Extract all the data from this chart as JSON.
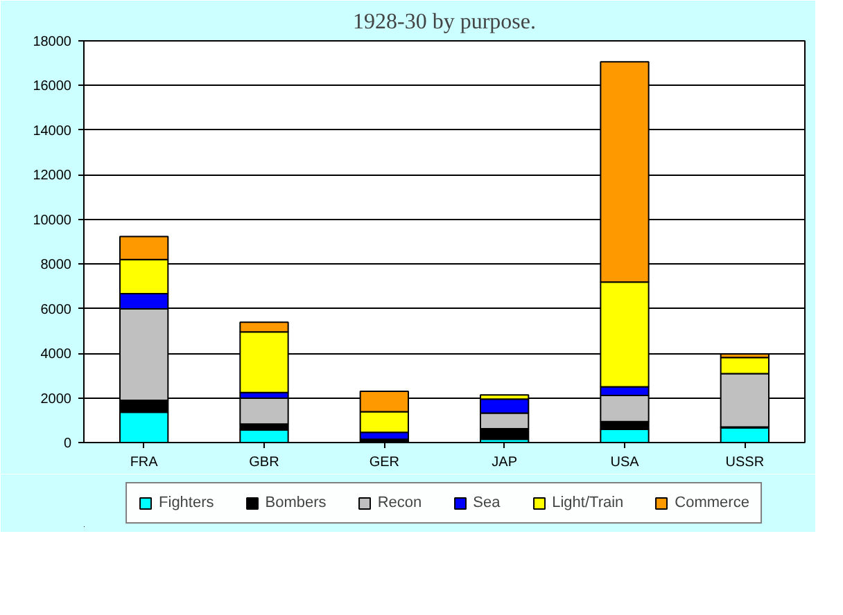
{
  "chart_data": {
    "type": "bar",
    "title": "1928-30 by purpose.",
    "stacked": true,
    "categories": [
      "FRA",
      "GBR",
      "GER",
      "JAP",
      "USA",
      "USSR"
    ],
    "series": [
      {
        "name": "Fighters",
        "color": "#00ffff",
        "values": [
          1360,
          570,
          0,
          150,
          590,
          660
        ]
      },
      {
        "name": "Bombers",
        "color": "#000000",
        "values": [
          530,
          260,
          150,
          470,
          350,
          40
        ]
      },
      {
        "name": "Recon",
        "color": "#c0c0c0",
        "values": [
          4100,
          1160,
          0,
          700,
          1170,
          2390
        ]
      },
      {
        "name": "Sea",
        "color": "#0000ff",
        "values": [
          680,
          250,
          310,
          630,
          390,
          0
        ]
      },
      {
        "name": "Light/Train",
        "color": "#ffff00",
        "values": [
          1530,
          2720,
          920,
          180,
          4690,
          720
        ]
      },
      {
        "name": "Commerce",
        "color": "#ff9900",
        "values": [
          1030,
          430,
          920,
          0,
          9870,
          160
        ]
      }
    ],
    "ylim": [
      0,
      18000
    ],
    "yticks": [
      0,
      2000,
      4000,
      6000,
      8000,
      10000,
      12000,
      14000,
      16000,
      18000
    ],
    "grid": "y",
    "legend": "bottom"
  }
}
